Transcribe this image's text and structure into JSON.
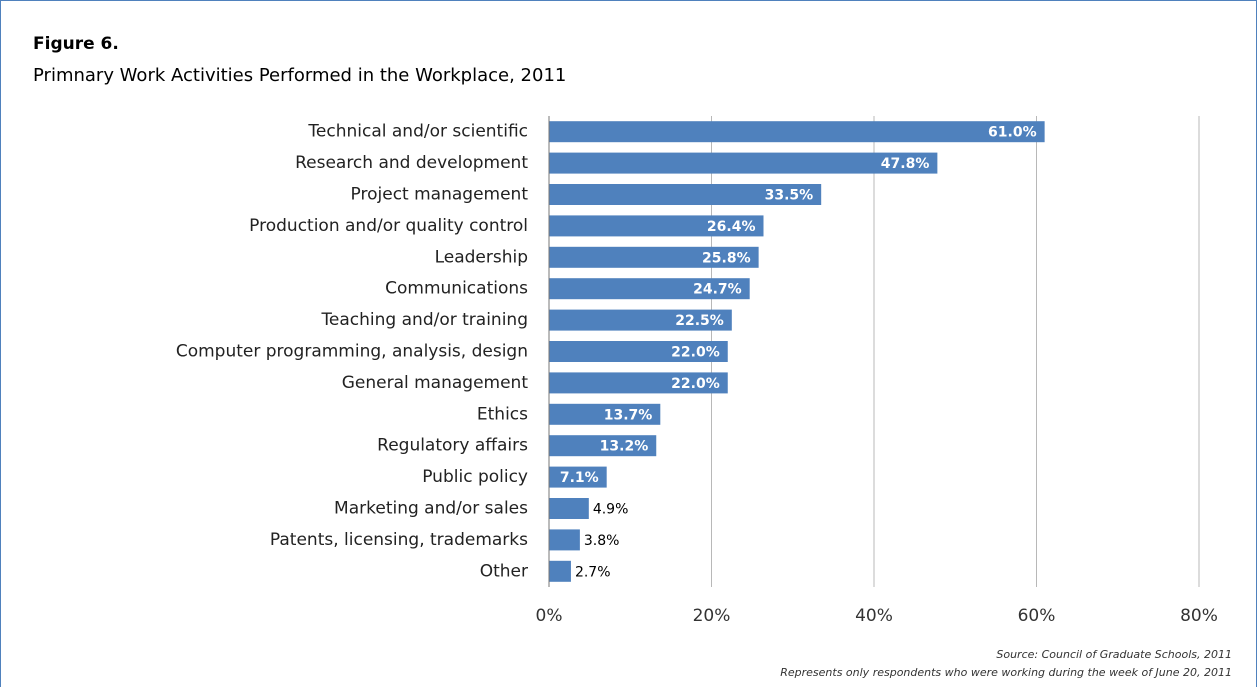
{
  "chart_data": {
    "type": "bar",
    "orientation": "horizontal",
    "title": "Figure 6.",
    "subtitle": "Primnary Work Activities Performed in the Workplace, 2011",
    "categories": [
      "Technical and/or scientific",
      "Research and development",
      "Project management",
      "Production and/or quality control",
      "Leadership",
      "Communications",
      "Teaching and/or training",
      "Computer programming, analysis, design",
      "General management",
      "Ethics",
      "Regulatory affairs",
      "Public policy",
      "Marketing and/or sales",
      "Patents, licensing, trademarks",
      "Other"
    ],
    "values": [
      61.0,
      47.8,
      33.5,
      26.4,
      25.8,
      24.7,
      22.5,
      22.0,
      22.0,
      13.7,
      13.2,
      7.1,
      4.9,
      3.8,
      2.7
    ],
    "value_labels": [
      "61.0%",
      "47.8%",
      "33.5%",
      "26.4%",
      "25.8%",
      "24.7%",
      "22.5%",
      "22.0%",
      "22.0%",
      "13.7%",
      "13.2%",
      "7.1%",
      "4.9%",
      "3.8%",
      "2.7%"
    ],
    "color": "#4f81bd",
    "xlim": [
      0,
      80
    ],
    "xticks": [
      {
        "value": 0,
        "label": "0%"
      },
      {
        "value": 20,
        "label": "20%"
      },
      {
        "value": 40,
        "label": "40%"
      },
      {
        "value": 60,
        "label": "60%"
      },
      {
        "value": 80,
        "label": "80%"
      }
    ],
    "grid": true,
    "notes": [
      "Source: Council of Graduate Schools, 2011",
      "Represents only respondents who were working during the week of June 20, 2011"
    ]
  }
}
